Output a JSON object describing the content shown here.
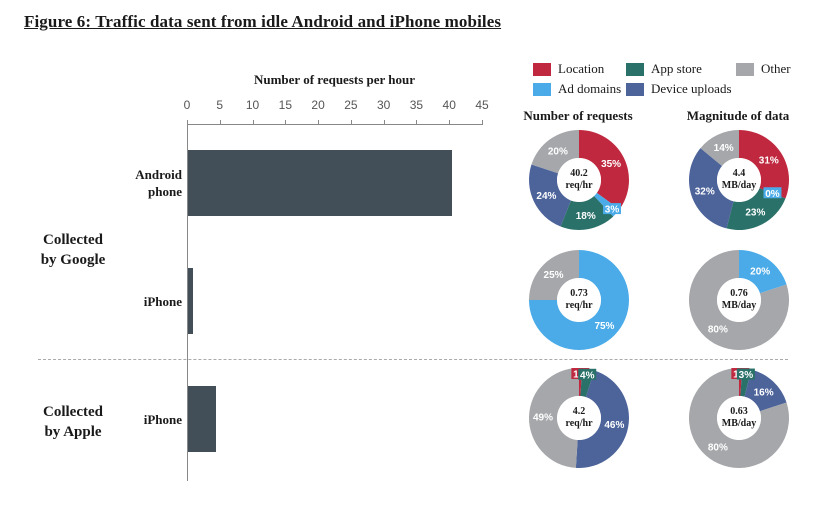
{
  "title": "Figure 6: Traffic data sent from idle Android and iPhone mobiles",
  "colors": {
    "location": "#c0283f",
    "app_store": "#2a7169",
    "other": "#a5a7aa",
    "ad_domains": "#4aabe8",
    "device_uploads": "#4d649b",
    "bar": "#434f58"
  },
  "legend": {
    "location": "Location",
    "app_store": "App store",
    "other": "Other",
    "ad_domains": "Ad domains",
    "device_uploads": "Device uploads"
  },
  "column_titles": {
    "requests": "Number of requests",
    "magnitude": "Magnitude of data"
  },
  "bar_chart": {
    "axis_title": "Number of requests per hour",
    "ticks": [
      "0",
      "5",
      "10",
      "15",
      "20",
      "25",
      "30",
      "35",
      "40",
      "45"
    ],
    "groups": {
      "google": "Collected by Google",
      "google_line1": "Collected",
      "google_line2": "by Google",
      "apple": "Collected by Apple",
      "apple_line1": "Collected",
      "apple_line2": "by Apple"
    },
    "categories": {
      "android_line1": "Android",
      "android_line2": "phone",
      "iphone_google": "iPhone",
      "iphone_apple": "iPhone"
    }
  },
  "donuts": {
    "android_requests": {
      "center_line1": "40.2",
      "center_line2": "req/hr"
    },
    "android_data": {
      "center_line1": "4.4",
      "center_line2": "MB/day"
    },
    "iphone_google_requests": {
      "center_line1": "0.73",
      "center_line2": "req/hr"
    },
    "iphone_google_data": {
      "center_line1": "0.76",
      "center_line2": "MB/day"
    },
    "iphone_apple_requests": {
      "center_line1": "4.2",
      "center_line2": "req/hr"
    },
    "iphone_apple_data": {
      "center_line1": "0.63",
      "center_line2": "MB/day"
    }
  },
  "chart_data": [
    {
      "type": "bar",
      "orientation": "horizontal",
      "title": "Number of requests per hour",
      "categories": [
        "Android phone (Collected by Google)",
        "iPhone (Collected by Google)",
        "iPhone (Collected by Apple)"
      ],
      "values": [
        40.2,
        0.73,
        4.2
      ],
      "xlabel": "Number of requests per hour",
      "xlim": [
        0,
        45
      ],
      "xticks": [
        0,
        5,
        10,
        15,
        20,
        25,
        30,
        35,
        40,
        45
      ],
      "grid": false
    },
    {
      "type": "pie",
      "donut": true,
      "title": "Number of requests - Android phone (Google)",
      "center_label": "40.2 req/hr",
      "labels": [
        "Location",
        "Ad domains",
        "App store",
        "Device uploads",
        "Other"
      ],
      "values": [
        35,
        3,
        18,
        24,
        20
      ]
    },
    {
      "type": "pie",
      "donut": true,
      "title": "Magnitude of data - Android phone (Google)",
      "center_label": "4.4 MB/day",
      "labels": [
        "Location",
        "Ad domains",
        "App store",
        "Device uploads",
        "Other"
      ],
      "values": [
        31,
        0,
        23,
        32,
        14
      ]
    },
    {
      "type": "pie",
      "donut": true,
      "title": "Number of requests - iPhone (Google)",
      "center_label": "0.73 req/hr",
      "labels": [
        "Ad domains",
        "Other"
      ],
      "values": [
        75,
        25
      ]
    },
    {
      "type": "pie",
      "donut": true,
      "title": "Magnitude of data - iPhone (Google)",
      "center_label": "0.76 MB/day",
      "labels": [
        "Ad domains",
        "Other"
      ],
      "values": [
        20,
        80
      ]
    },
    {
      "type": "pie",
      "donut": true,
      "title": "Number of requests - iPhone (Apple)",
      "center_label": "4.2 req/hr",
      "labels": [
        "Location",
        "App store",
        "Device uploads",
        "Other"
      ],
      "values": [
        1,
        4,
        46,
        49
      ]
    },
    {
      "type": "pie",
      "donut": true,
      "title": "Magnitude of data - iPhone (Apple)",
      "center_label": "0.63 MB/day",
      "labels": [
        "Location",
        "App store",
        "Device uploads",
        "Other"
      ],
      "values": [
        1,
        3,
        16,
        80
      ]
    }
  ]
}
